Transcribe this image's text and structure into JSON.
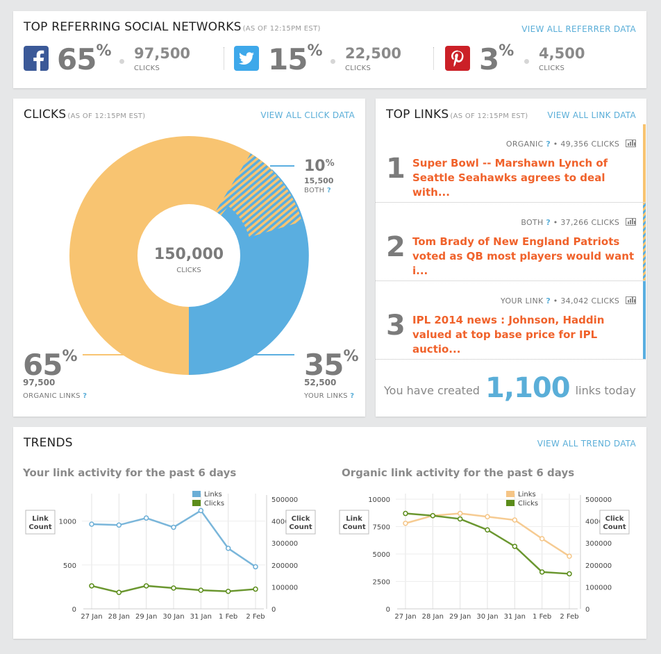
{
  "referrers": {
    "title": "TOP REFERRING SOCIAL NETWORKS",
    "as_of": "(AS OF 12:15PM EST)",
    "view_all": "VIEW ALL REFERRER DATA",
    "networks": [
      {
        "name": "facebook",
        "icon": "facebook-icon",
        "color": "#3b5998",
        "glyph": "f",
        "pct": "65",
        "clicks": "97,500",
        "clicks_label": "CLICKS"
      },
      {
        "name": "twitter",
        "icon": "twitter-icon",
        "color": "#3ea8ea",
        "glyph": "t",
        "pct": "15",
        "clicks": "22,500",
        "clicks_label": "CLICKS"
      },
      {
        "name": "pinterest",
        "icon": "pinterest-icon",
        "color": "#cb2027",
        "glyph": "p",
        "pct": "3",
        "clicks": "4,500",
        "clicks_label": "CLICKS"
      }
    ],
    "pct_symbol": "%"
  },
  "clicks": {
    "title": "CLICKS",
    "as_of": "(AS OF 12:15PM EST)",
    "view_all": "VIEW ALL CLICK DATA",
    "total": "150,000",
    "total_label": "CLICKS",
    "organic": {
      "pct": "65",
      "value": "97,500",
      "label": "ORGANIC LINKS",
      "q": "?",
      "color": "#f8c471"
    },
    "yours": {
      "pct": "35",
      "value": "52,500",
      "label": "YOUR LINKS",
      "q": "?",
      "color": "#5aaee0"
    },
    "both": {
      "pct": "10",
      "value": "15,500",
      "label": "BOTH",
      "q": "?"
    }
  },
  "top_links": {
    "title": "TOP LINKS",
    "as_of": "(AS OF 12:15PM EST)",
    "view_all": "VIEW ALL LINK DATA",
    "items": [
      {
        "rank": "1",
        "type": "ORGANIC",
        "q": "?",
        "clicks": "• 49,356 CLICKS",
        "title": "Super Bowl -- Marshawn Lynch of Seattle Seahawks agrees to deal with..."
      },
      {
        "rank": "2",
        "type": "BOTH",
        "q": "?",
        "clicks": "• 37,266 CLICKS",
        "title": "Tom Brady of New England Patriots voted as QB most players would want i..."
      },
      {
        "rank": "3",
        "type": "YOUR LINK",
        "q": "?",
        "clicks": "• 34,042 CLICKS",
        "title": "IPL 2014 news : Johnson, Haddin valued at top base price for IPL auctio..."
      }
    ],
    "created_prefix": "You have created",
    "created_count": "1,100",
    "created_suffix": "links today"
  },
  "trends": {
    "title": "TRENDS",
    "view_all": "VIEW ALL TREND DATA"
  },
  "chart_data": [
    {
      "type": "line",
      "title": "Your link activity for the past 6 days",
      "x": [
        "27 Jan",
        "28 Jan",
        "29 Jan",
        "30 Jan",
        "31 Jan",
        "1 Feb",
        "2 Feb"
      ],
      "left_axis_label": "Link Count",
      "right_axis_label": "Click Count",
      "left_ticks": [
        "0",
        "500",
        "1000"
      ],
      "right_ticks": [
        "0",
        "100000",
        "200000",
        "300000",
        "400000",
        "500000"
      ],
      "left_ylim": [
        0,
        1250
      ],
      "right_ylim": [
        0,
        500000
      ],
      "grid": true,
      "legend": "top-center",
      "series": [
        {
          "name": "Links",
          "axis": "left",
          "color": "#6baed6",
          "values": [
            965,
            955,
            1035,
            930,
            1120,
            690,
            480
          ]
        },
        {
          "name": "Clicks",
          "axis": "right",
          "color": "#5b8c1a",
          "values": [
            105000,
            75000,
            105000,
            95000,
            85000,
            80000,
            90000
          ]
        }
      ]
    },
    {
      "type": "line",
      "title": "Organic link activity for the past 6 days",
      "x": [
        "27 Jan",
        "28 Jan",
        "29 Jan",
        "30 Jan",
        "31 Jan",
        "1 Feb",
        "2 Feb"
      ],
      "left_axis_label": "Link Count",
      "right_axis_label": "Click Count",
      "left_ticks": [
        "0",
        "2500",
        "5000",
        "7500",
        "10000"
      ],
      "right_ticks": [
        "0",
        "100000",
        "200000",
        "300000",
        "400000",
        "500000"
      ],
      "left_ylim": [
        0,
        10000
      ],
      "right_ylim": [
        0,
        500000
      ],
      "grid": true,
      "legend": "top-center",
      "series": [
        {
          "name": "Links",
          "axis": "left",
          "color": "#f5c586",
          "values": [
            7800,
            8500,
            8700,
            8400,
            8100,
            6400,
            4800
          ]
        },
        {
          "name": "Clicks",
          "axis": "right",
          "color": "#5b8c1a",
          "values": [
            435000,
            425000,
            410000,
            360000,
            285000,
            168000,
            160000
          ]
        }
      ]
    }
  ]
}
